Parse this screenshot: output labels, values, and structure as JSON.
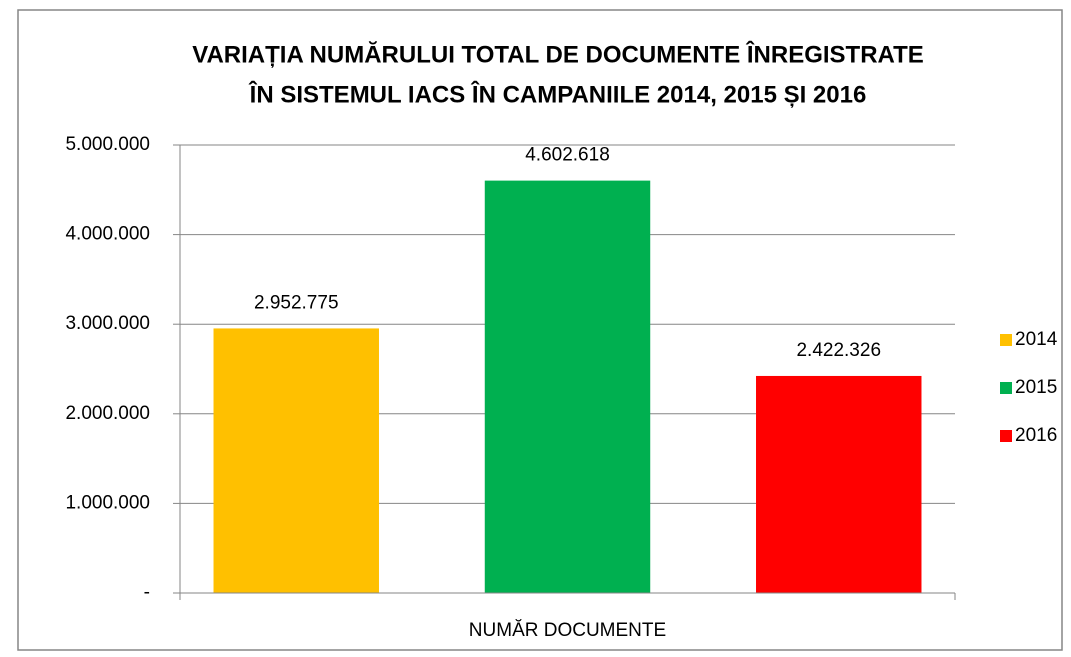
{
  "chart_data": {
    "type": "bar",
    "title": [
      "VARIAȚIA NUMĂRULUI TOTAL DE DOCUMENTE ÎNREGISTRATE",
      "ÎN SISTEMUL IACS ÎN CAMPANIILE 2014, 2015 ȘI 2016"
    ],
    "categories": [
      "NUMĂR DOCUMENTE"
    ],
    "series": [
      {
        "name": "2014",
        "color": "#ffc000",
        "values": [
          2952775
        ],
        "value_labels": [
          "2.952.775"
        ]
      },
      {
        "name": "2015",
        "color": "#00b050",
        "values": [
          4602618
        ],
        "value_labels": [
          "4.602.618"
        ]
      },
      {
        "name": "2016",
        "color": "#ff0000",
        "values": [
          2422326
        ],
        "value_labels": [
          "2.422.326"
        ]
      }
    ],
    "ylim": [
      0,
      5000000
    ],
    "yticks": [
      {
        "value": 0,
        "label": "-"
      },
      {
        "value": 1000000,
        "label": "1.000.000"
      },
      {
        "value": 2000000,
        "label": "2.000.000"
      },
      {
        "value": 3000000,
        "label": "3.000.000"
      },
      {
        "value": 4000000,
        "label": "4.000.000"
      },
      {
        "value": 5000000,
        "label": "5.000.000"
      }
    ],
    "grid": true,
    "legend": "right"
  }
}
